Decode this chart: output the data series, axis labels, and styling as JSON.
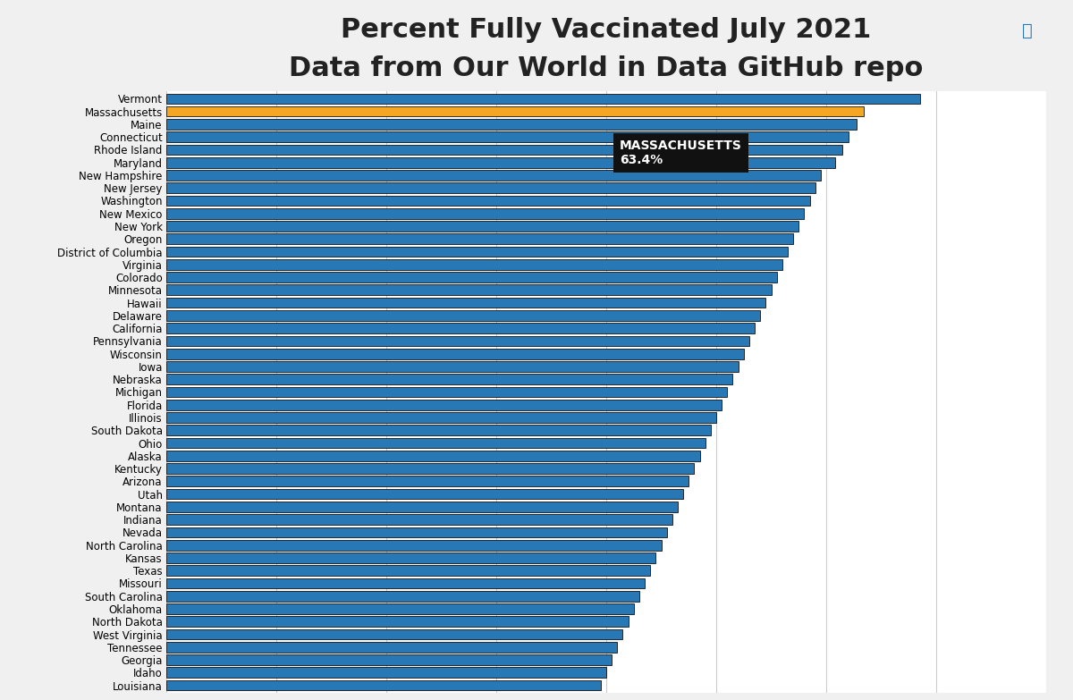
{
  "title": "Percent Fully Vaccinated July 2021",
  "subtitle": "Data from Our World in Data GitHub repo",
  "states": [
    "Vermont",
    "Massachusetts",
    "Maine",
    "Connecticut",
    "Rhode Island",
    "Maryland",
    "New Hampshire",
    "New Jersey",
    "Washington",
    "New Mexico",
    "New York",
    "Oregon",
    "District of Columbia",
    "Virginia",
    "Colorado",
    "Minnesota",
    "Hawaii",
    "Delaware",
    "California",
    "Pennsylvania",
    "Wisconsin",
    "Iowa",
    "Nebraska",
    "Michigan",
    "Florida",
    "Illinois",
    "South Dakota",
    "Ohio",
    "Alaska",
    "Kentucky",
    "Arizona",
    "Utah",
    "Montana",
    "Indiana",
    "Nevada",
    "North Carolina",
    "Kansas",
    "Texas",
    "Missouri",
    "South Carolina",
    "Oklahoma",
    "North Dakota",
    "West Virginia",
    "Tennessee",
    "Georgia",
    "Idaho",
    "Louisiana"
  ],
  "values": [
    68.5,
    63.4,
    62.8,
    62.0,
    61.5,
    60.8,
    59.5,
    59.0,
    58.5,
    58.0,
    57.5,
    57.0,
    56.5,
    56.0,
    55.5,
    55.0,
    54.5,
    54.0,
    53.5,
    53.0,
    52.5,
    52.0,
    51.5,
    51.0,
    50.5,
    50.0,
    49.5,
    49.0,
    48.5,
    48.0,
    47.5,
    47.0,
    46.5,
    46.0,
    45.5,
    45.0,
    44.5,
    44.0,
    43.5,
    43.0,
    42.5,
    42.0,
    41.5,
    41.0,
    40.5,
    40.0,
    39.5
  ],
  "highlighted_state": "Massachusetts",
  "highlighted_value": 63.4,
  "blue_color": "#2878b5",
  "yellow_color": "#f5a623",
  "bar_edge_color": "#111111",
  "background_color": "#f0f0f0",
  "plot_bg_color": "#ffffff",
  "title_fontsize": 22,
  "subtitle_fontsize": 17,
  "tick_fontsize": 8.5,
  "xlim": [
    0,
    80
  ],
  "tooltip_state": "MASSACHUSETTS",
  "tooltip_value": "63.4%"
}
